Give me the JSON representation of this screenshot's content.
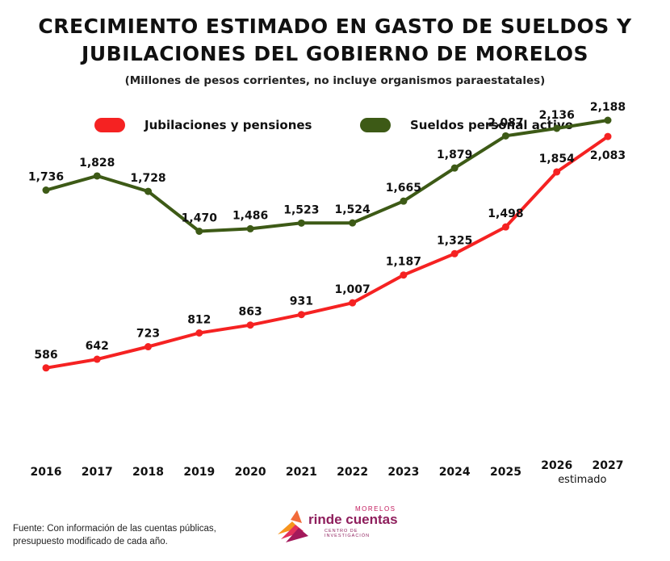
{
  "header": {
    "title_line1": "CRECIMIENTO ESTIMADO EN GASTO DE SUELDOS Y",
    "title_line2": "JUBILACIONES DEL GOBIERNO DE MORELOS",
    "subtitle": "(Millones de pesos corrientes, no incluye organismos paraestatales)"
  },
  "legend": {
    "items": [
      {
        "label": "Jubilaciones y pensiones",
        "color": "#f52222"
      },
      {
        "label": "Sueldos personal activo",
        "color": "#3d5a16"
      }
    ]
  },
  "chart_data": {
    "type": "line",
    "categories": [
      "2016",
      "2017",
      "2018",
      "2019",
      "2020",
      "2021",
      "2022",
      "2023",
      "2024",
      "2025",
      "2026",
      "2027"
    ],
    "x_note": "estimado",
    "grid": false,
    "legend_position": "top",
    "series": [
      {
        "name": "Jubilaciones y pensiones",
        "color": "#f52222",
        "values": [
          586,
          642,
          723,
          812,
          863,
          931,
          1007,
          1187,
          1325,
          1498,
          1854,
          2083
        ],
        "labels": [
          "586",
          "642",
          "723",
          "812",
          "863",
          "931",
          "1,007",
          "1,187",
          "1,325",
          "1,498",
          "1,854",
          "2,083"
        ]
      },
      {
        "name": "Sueldos personal activo",
        "color": "#3d5a16",
        "values": [
          1736,
          1828,
          1728,
          1470,
          1486,
          1523,
          1524,
          1665,
          1879,
          2087,
          2136,
          2188
        ],
        "labels": [
          "1,736",
          "1,828",
          "1,728",
          "1,470",
          "1,486",
          "1,523",
          "1,524",
          "1,665",
          "1,879",
          "2,087",
          "2,136",
          "2,188"
        ]
      }
    ]
  },
  "footer": {
    "source_line1": "Fuente: Con información de las cuentas públicas,",
    "source_line2": "presupuesto modificado de cada año."
  },
  "logo": {
    "top_text": "MORELOS",
    "main_text": "rinde cuentas",
    "bottom_text": "CENTRO DE INVESTIGACIÓN"
  }
}
